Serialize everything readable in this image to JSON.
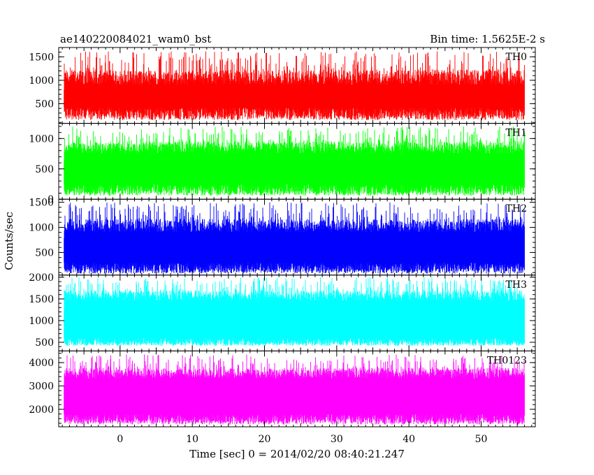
{
  "header": {
    "title": "ae140220084021_wam0_bst",
    "bin_time": "Bin time: 1.5625E-2 s"
  },
  "axes": {
    "xlabel": "Time [sec] 0 = 2014/02/20 08:40:21.247",
    "ylabel": "Counts/sec",
    "x_ticks": [
      0,
      10,
      20,
      30,
      40,
      50
    ],
    "x_range": [
      -8.5,
      57.5
    ]
  },
  "chart_data": {
    "type": "line",
    "x_range": [
      -7.8,
      56.0
    ],
    "bin_time_s": 0.015625,
    "series": [
      {
        "name": "TH0",
        "color": "#ff0000",
        "ylim": [
          80,
          1700
        ],
        "yticks": [
          500,
          1000,
          1500
        ],
        "baseline": 680,
        "low_range": [
          150,
          420
        ],
        "high_range": [
          900,
          1620
        ]
      },
      {
        "name": "TH1",
        "color": "#00ff00",
        "ylim": [
          0,
          1250
        ],
        "yticks": [
          0,
          500,
          1000
        ],
        "baseline": 480,
        "low_range": [
          60,
          250
        ],
        "high_range": [
          750,
          1200
        ]
      },
      {
        "name": "TH2",
        "color": "#0000ff",
        "ylim": [
          50,
          1560
        ],
        "yticks": [
          500,
          1000,
          1500
        ],
        "baseline": 650,
        "low_range": [
          80,
          300
        ],
        "high_range": [
          900,
          1500
        ]
      },
      {
        "name": "TH3",
        "color": "#00ffff",
        "ylim": [
          300,
          2050
        ],
        "yticks": [
          500,
          1000,
          1500,
          2000
        ],
        "baseline": 1000,
        "low_range": [
          420,
          600
        ],
        "high_range": [
          1450,
          2000
        ]
      },
      {
        "name": "TH0123",
        "color": "#ff00ff",
        "ylim": [
          1250,
          4500
        ],
        "yticks": [
          2000,
          3000,
          4000
        ],
        "baseline": 2650,
        "low_range": [
          1350,
          1800
        ],
        "high_range": [
          3300,
          4350
        ]
      }
    ]
  }
}
